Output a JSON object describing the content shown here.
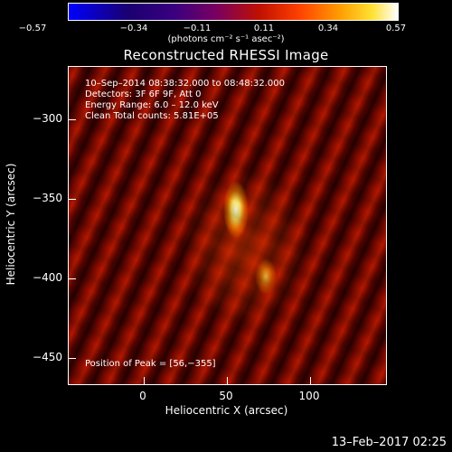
{
  "colorbar": {
    "ticks": [
      "−0.57",
      "−0.34",
      "−0.11",
      "0.11",
      "0.34",
      "0.57"
    ],
    "units": "(photons cm⁻² s⁻¹ asec⁻²)"
  },
  "plot": {
    "title": "Reconstructed RHESSI Image",
    "annotations": [
      "10–Sep–2014 08:38:32.000 to 08:48:32.000",
      "Detectors: 3F 6F 9F, Att 0",
      "Energy Range: 6.0 – 12.0 keV",
      "Clean     Total counts: 5.81E+05"
    ],
    "peak": "Position of Peak = [56,−355]",
    "y_ticks": [
      "−300",
      "−350",
      "−400",
      "−450"
    ],
    "x_ticks": [
      "0",
      "50",
      "100"
    ],
    "xlabel": "Heliocentric X (arcsec)",
    "ylabel": "Heliocentric Y (arcsec)"
  },
  "footer": {
    "date": "13–Feb–2017 02:25"
  }
}
